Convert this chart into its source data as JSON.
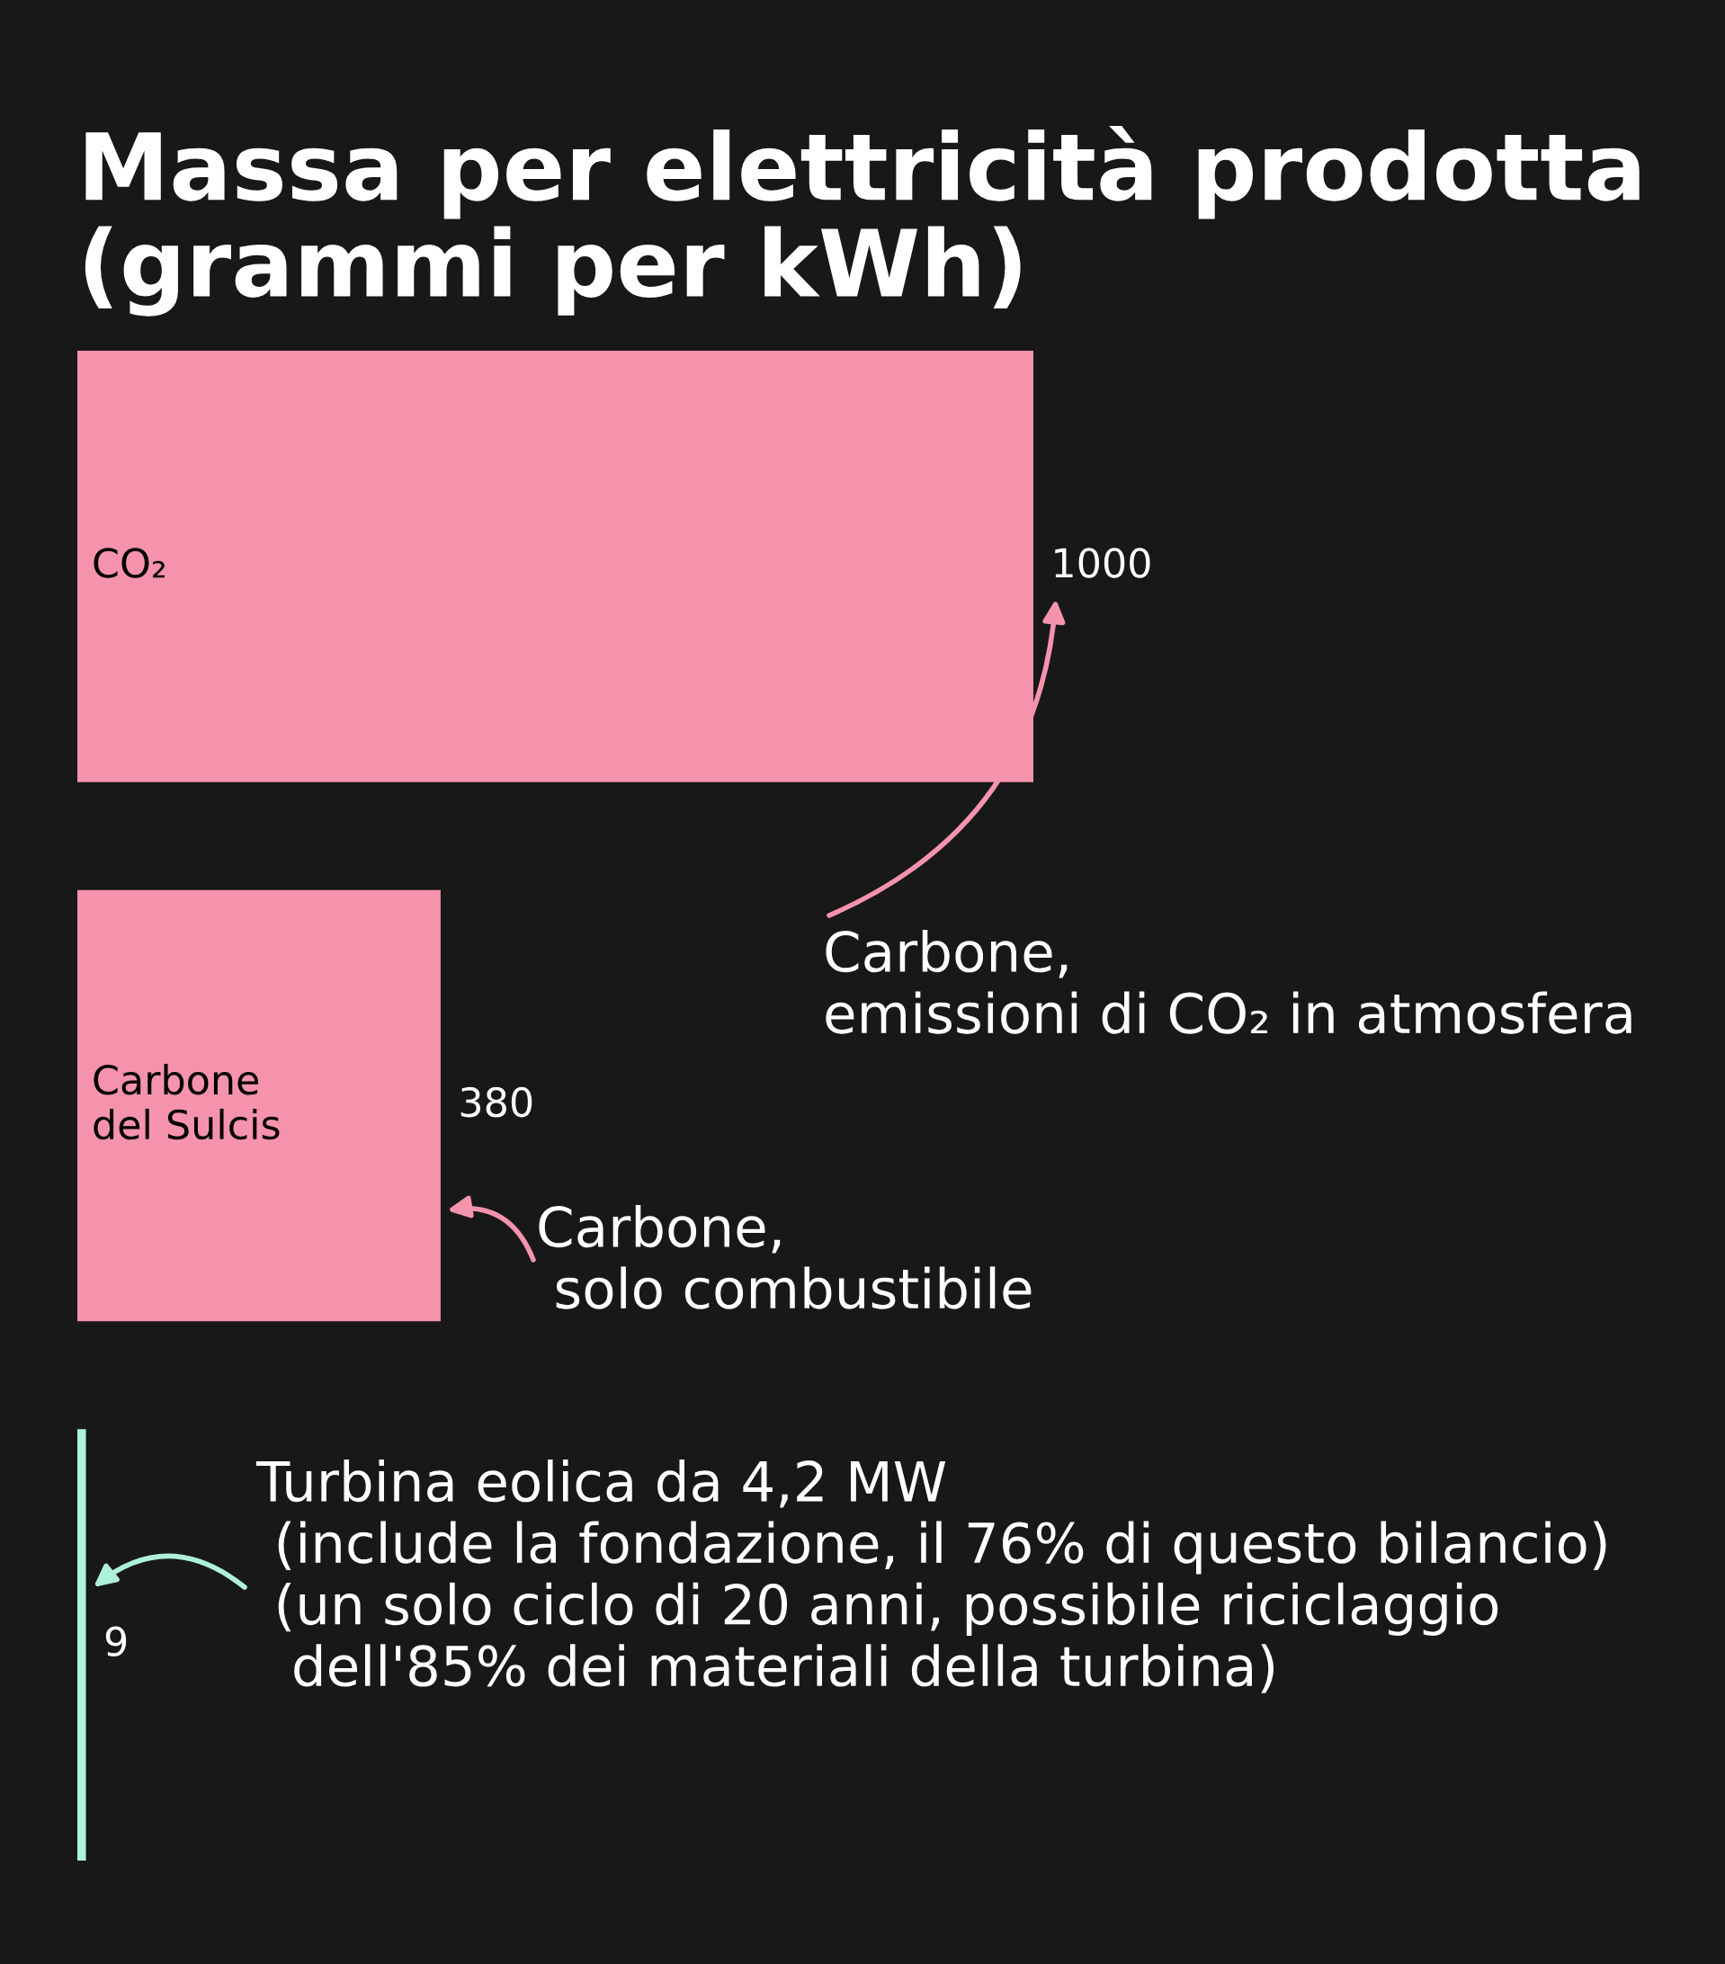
{
  "chart_data": {
    "type": "bar",
    "orientation": "horizontal",
    "title": "Massa per elettricità prodotta\n(grammi per kWh)",
    "categories": [
      "CO₂",
      "Carbone\ndel Sulcis",
      null
    ],
    "values": [
      1000,
      380,
      9
    ],
    "colors": [
      "#f593ad",
      "#f593ad",
      "#aef0dc"
    ],
    "data_labels": true,
    "annotations": [
      "Carbone,\nemissioni di CO₂ in atmosfera",
      "Carbone,\n solo combustibile",
      "Turbina eolica da 4,2 MW\n (include la fondazione, il 76% di questo bilancio)\n (un solo ciclo di 20 anni, possibile riciclaggio\n  dell'85% dei materiali della turbina)"
    ]
  }
}
